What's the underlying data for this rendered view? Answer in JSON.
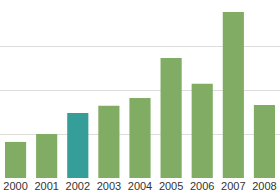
{
  "chart_data": {
    "type": "bar",
    "categories": [
      "2000",
      "2001",
      "2002",
      "2003",
      "2004",
      "2005",
      "2006",
      "2007",
      "2008"
    ],
    "values": [
      0.82,
      1.0,
      1.48,
      1.64,
      1.82,
      2.73,
      2.14,
      3.77,
      1.66
    ],
    "colors": [
      "#80ad63",
      "#80ad63",
      "#369e98",
      "#80ad63",
      "#80ad63",
      "#80ad63",
      "#80ad63",
      "#80ad63",
      "#80ad63"
    ],
    "ylim": [
      0,
      4
    ],
    "yticks": [
      0,
      1,
      2,
      3,
      4
    ],
    "grid": true,
    "tick_labels": "x"
  }
}
